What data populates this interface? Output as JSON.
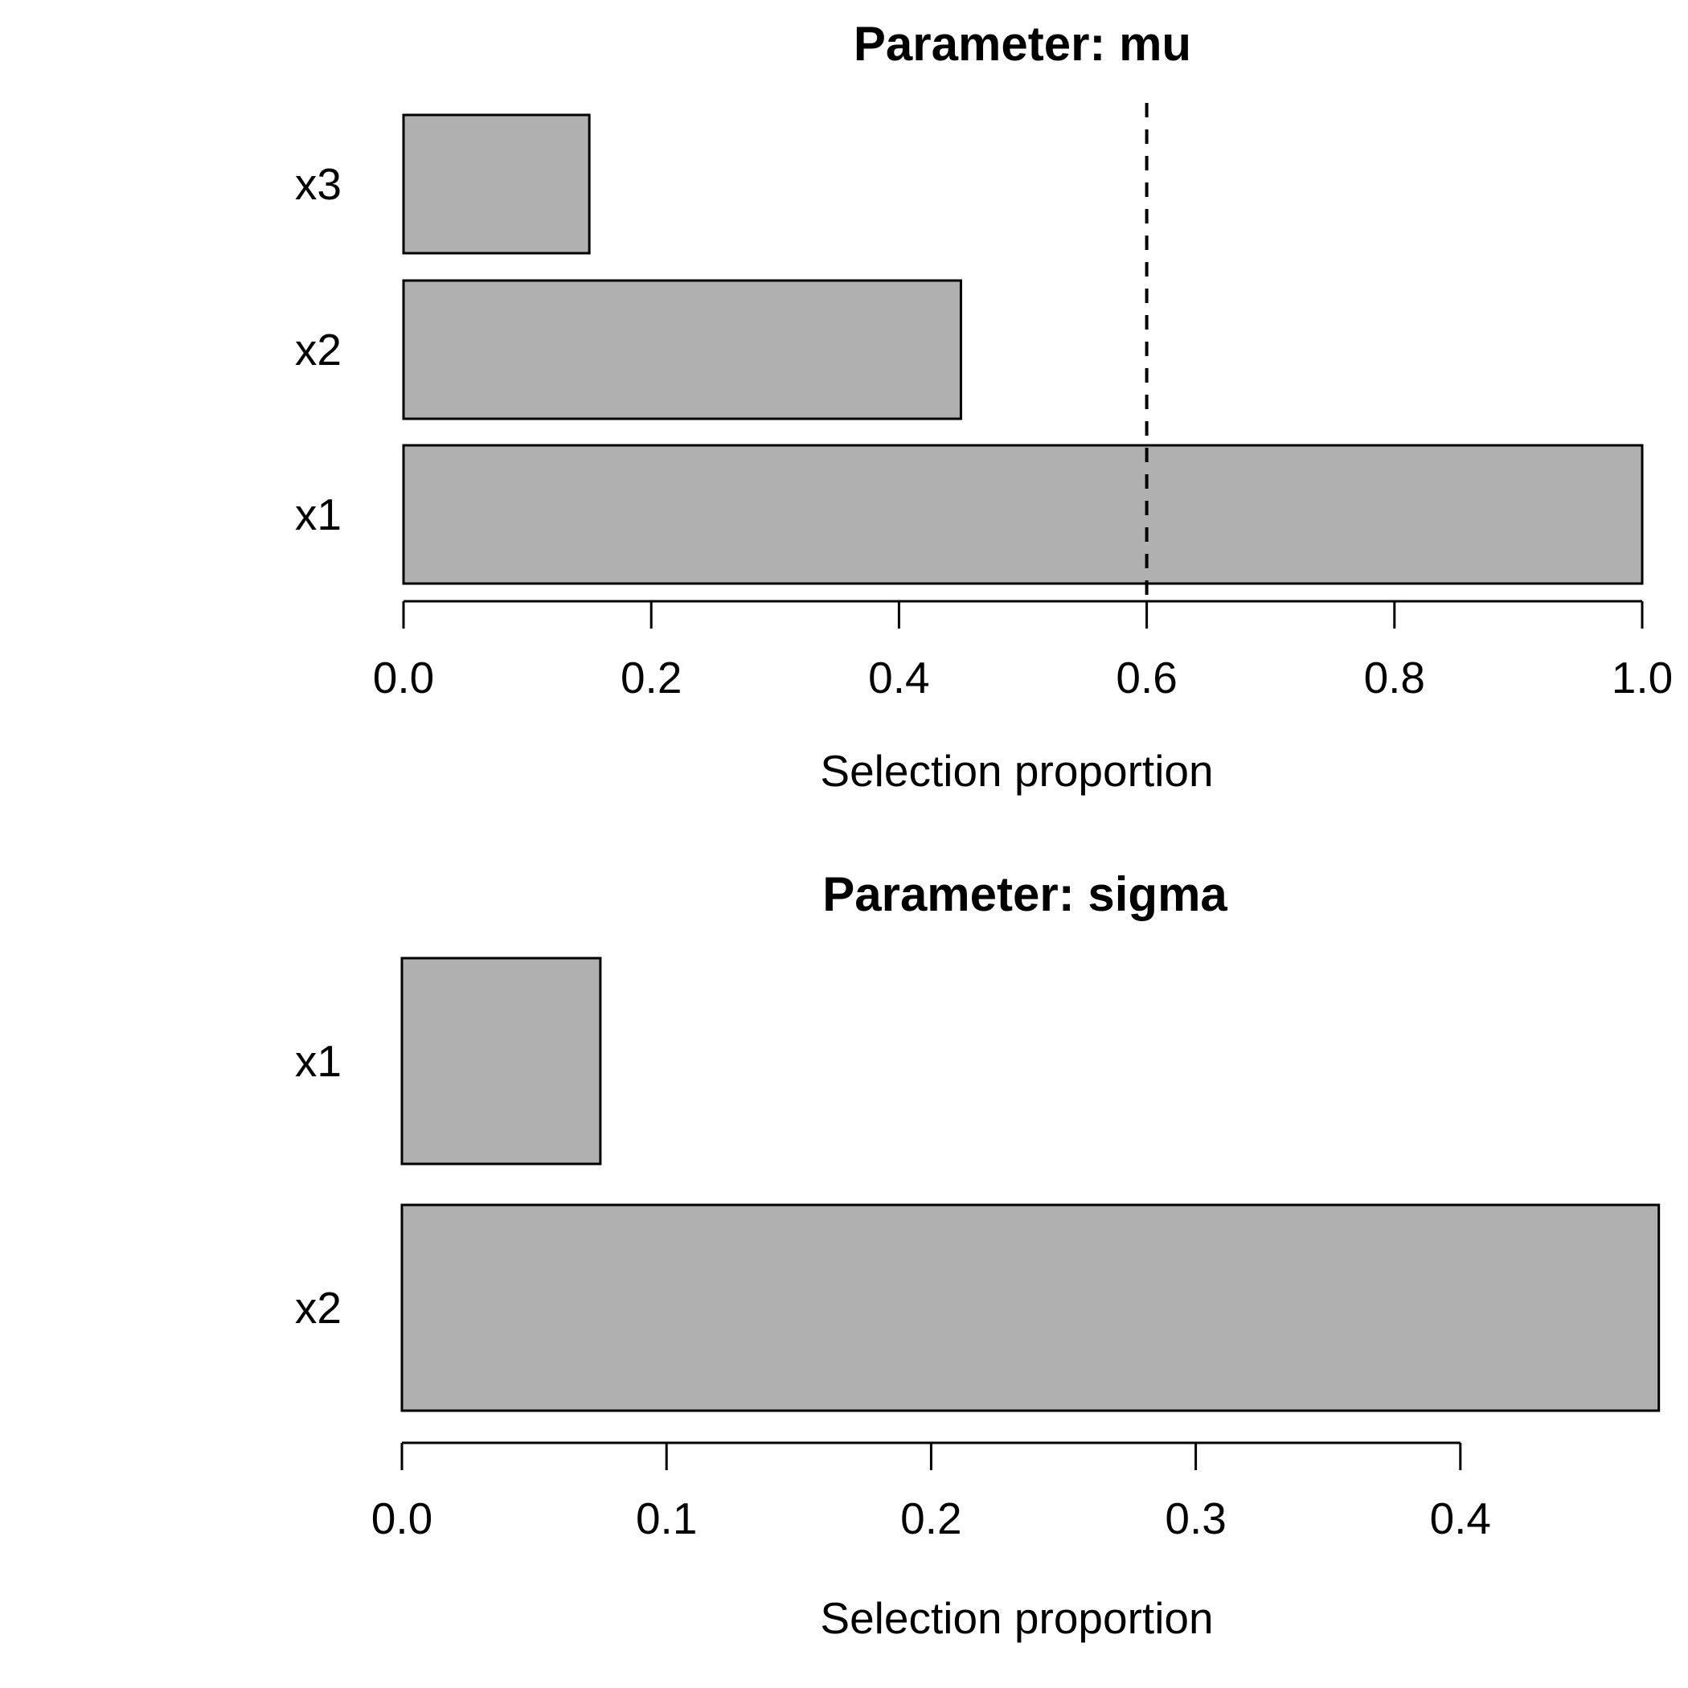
{
  "chart_data": [
    {
      "type": "bar",
      "orientation": "horizontal",
      "title": "Parameter: mu",
      "xlabel": "Selection proportion",
      "categories": [
        "x3",
        "x2",
        "x1"
      ],
      "values": [
        0.15,
        0.45,
        1.0
      ],
      "xlim": [
        0,
        1.0
      ],
      "xticks": [
        "0.0",
        "0.2",
        "0.4",
        "0.6",
        "0.8",
        "1.0"
      ],
      "reference_line_x": 0.6,
      "reference_line_style": "dashed",
      "bar_fill": "#b0b0b0",
      "bar_border": "#000000",
      "grid": false,
      "legend": "none"
    },
    {
      "type": "bar",
      "orientation": "horizontal",
      "title": "Parameter: sigma",
      "xlabel": "Selection proportion",
      "categories": [
        "x1",
        "x2"
      ],
      "values": [
        0.075,
        0.475
      ],
      "xlim": [
        0,
        0.475
      ],
      "xticks": [
        "0.0",
        "0.1",
        "0.2",
        "0.3",
        "0.4"
      ],
      "bar_fill": "#b0b0b0",
      "bar_border": "#000000",
      "grid": false,
      "legend": "none"
    }
  ]
}
